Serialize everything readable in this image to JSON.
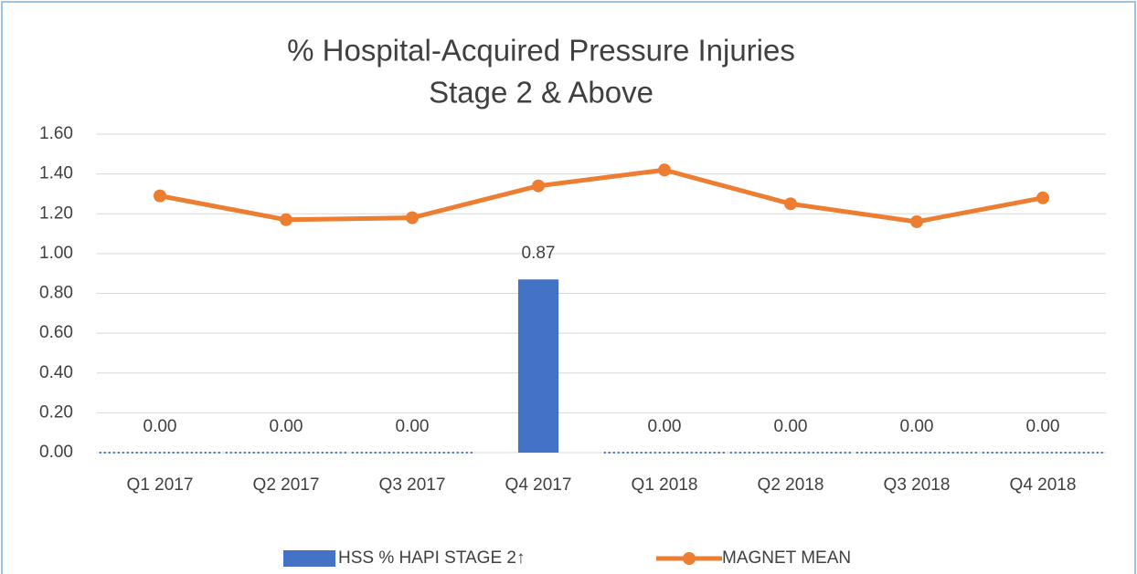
{
  "chart_data": {
    "type": "bar-line",
    "title": [
      "% Hospital-Acquired Pressure Injuries",
      "Stage 2 & Above"
    ],
    "categories": [
      "Q1 2017",
      "Q2 2017",
      "Q3 2017",
      "Q4 2017",
      "Q1 2018",
      "Q2 2018",
      "Q3 2018",
      "Q4 2018"
    ],
    "series": [
      {
        "name": "HSS % HAPI STAGE 2↑",
        "type": "bar",
        "color": "#4472c4",
        "values": [
          0,
          0,
          0,
          0.87,
          0,
          0,
          0,
          0
        ],
        "value_labels": [
          "0.00",
          "0.00",
          "0.00",
          "0.87",
          "0.00",
          "0.00",
          "0.00",
          "0.00"
        ]
      },
      {
        "name": "MAGNET MEAN",
        "type": "line",
        "color": "#ed7d31",
        "values": [
          1.29,
          1.17,
          1.18,
          1.34,
          1.42,
          1.25,
          1.16,
          1.28
        ]
      }
    ],
    "ylim": [
      0,
      1.6
    ],
    "yticks": [
      {
        "value": 0,
        "label": "0.00"
      },
      {
        "value": 0.2,
        "label": "0.20"
      },
      {
        "value": 0.4,
        "label": "0.40"
      },
      {
        "value": 0.6,
        "label": "0.60"
      },
      {
        "value": 0.8,
        "label": "0.80"
      },
      {
        "value": 1,
        "label": "1.00"
      },
      {
        "value": 1.2,
        "label": "1.20"
      },
      {
        "value": 1.4,
        "label": "1.40"
      },
      {
        "value": 1.6,
        "label": "1.60"
      }
    ],
    "grid": true,
    "legend": "bottom"
  }
}
